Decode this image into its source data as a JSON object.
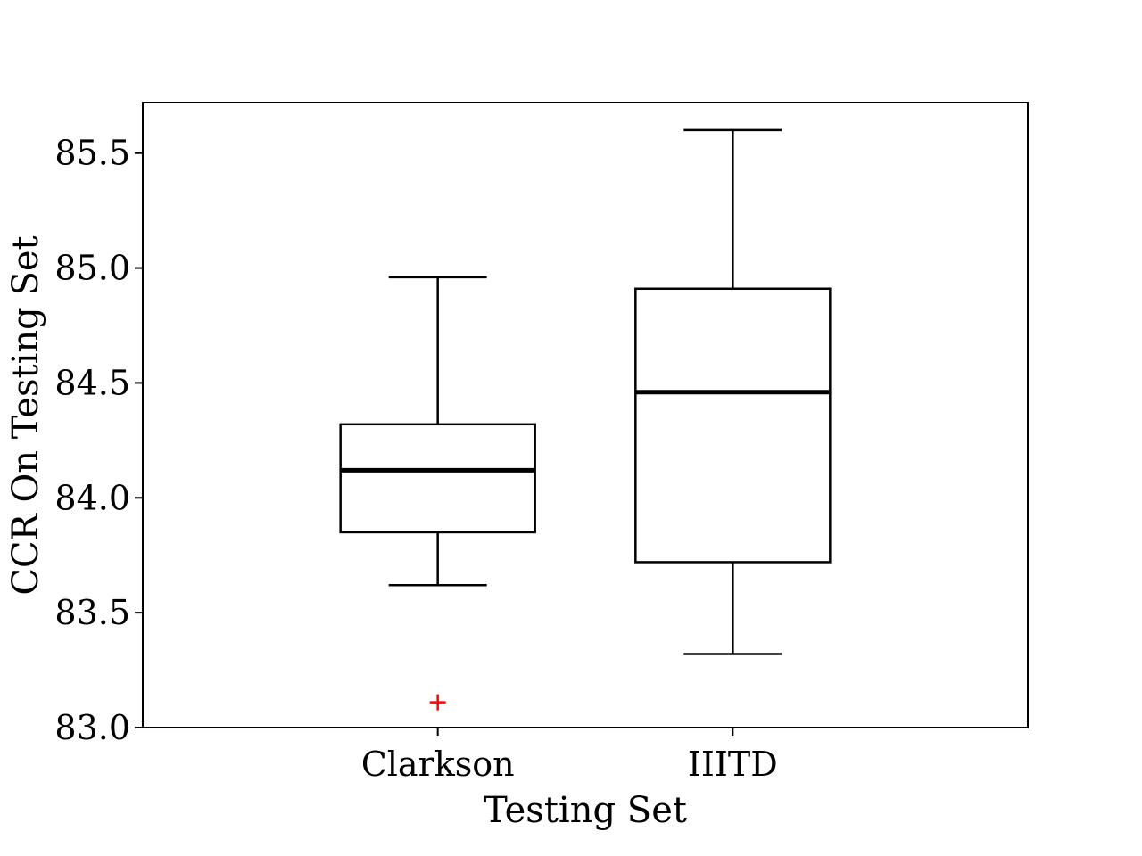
{
  "chart_data": {
    "type": "boxplot",
    "title": "",
    "xlabel": "Testing Set",
    "ylabel": "CCR On Testing Set",
    "ylim": [
      83.0,
      85.72
    ],
    "yticks": [
      "83.0",
      "83.5",
      "84.0",
      "84.5",
      "85.0",
      "85.5"
    ],
    "categories": [
      "Clarkson",
      "IIITD"
    ],
    "grid": false,
    "legend": "none",
    "colors": {
      "box": "#000000",
      "median": "#000000",
      "outlier": "#ff0000"
    },
    "boxes": [
      {
        "name": "Clarkson",
        "whisker_low": 83.62,
        "q1": 83.85,
        "median": 84.12,
        "q3": 84.32,
        "whisker_high": 84.96,
        "outliers": [
          83.11
        ]
      },
      {
        "name": "IIITD",
        "whisker_low": 83.32,
        "q1": 83.72,
        "median": 84.46,
        "q3": 84.91,
        "whisker_high": 85.6,
        "outliers": []
      }
    ]
  }
}
